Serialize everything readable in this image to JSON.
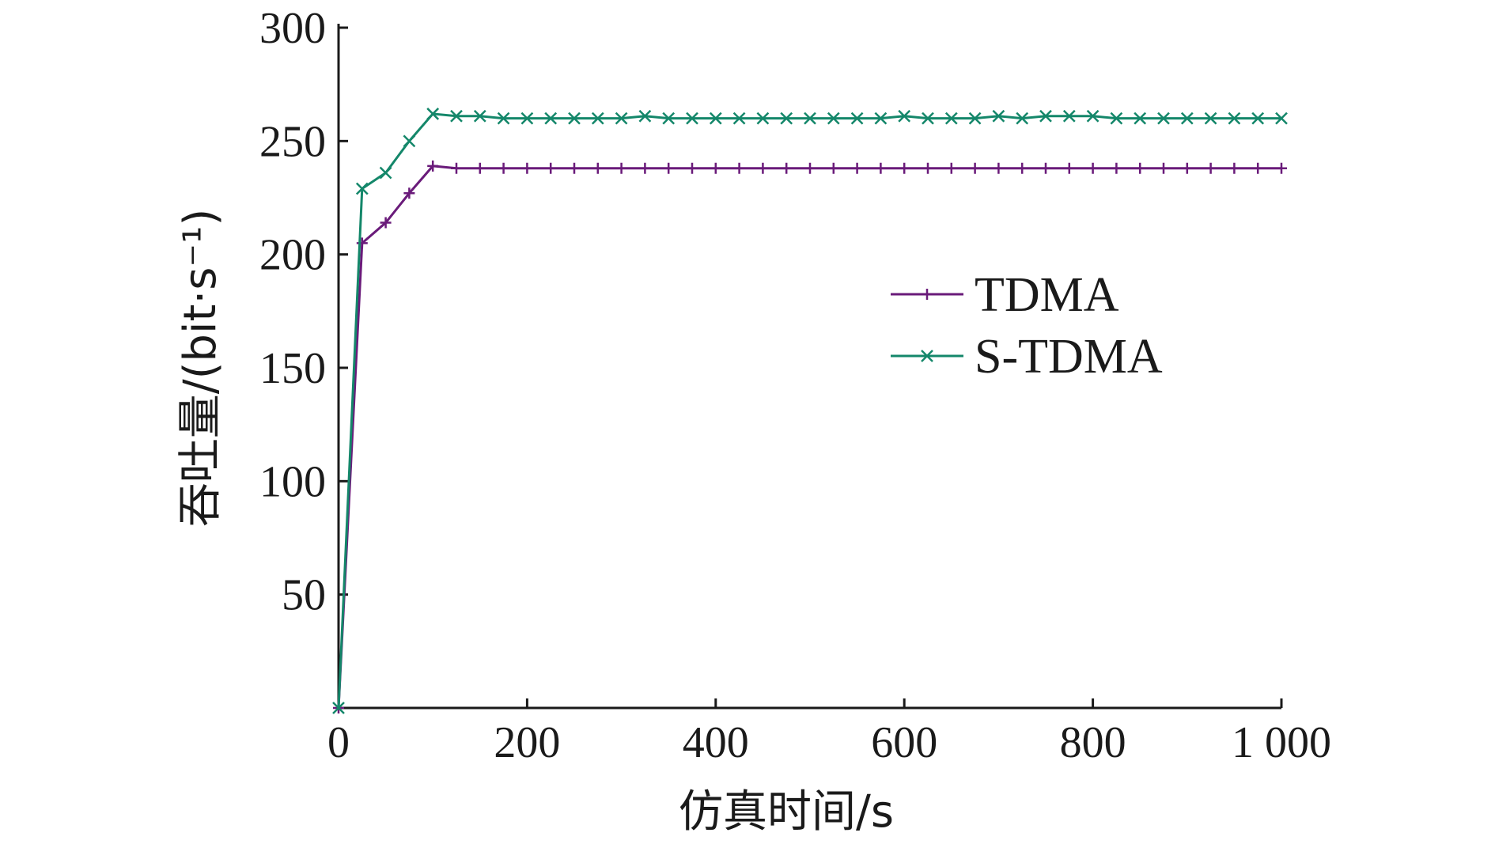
{
  "chart_data": {
    "type": "line",
    "title": "",
    "xlabel": "仿真时间/s",
    "ylabel": "吞吐量/(bit·s⁻¹)",
    "xlim": [
      0,
      1000
    ],
    "ylim": [
      0,
      300
    ],
    "x_ticks": [
      0,
      200,
      400,
      600,
      800,
      1000
    ],
    "x_tick_labels": [
      "0",
      "200",
      "400",
      "600",
      "800",
      "1 000"
    ],
    "y_ticks": [
      50,
      100,
      150,
      200,
      250,
      300
    ],
    "y_tick_labels": [
      "50",
      "100",
      "150",
      "200",
      "250",
      "300"
    ],
    "grid": false,
    "legend_position": "center-right",
    "x": [
      0,
      25,
      50,
      75,
      100,
      125,
      150,
      175,
      200,
      225,
      250,
      275,
      300,
      325,
      350,
      375,
      400,
      425,
      450,
      475,
      500,
      525,
      550,
      575,
      600,
      625,
      650,
      675,
      700,
      725,
      750,
      775,
      800,
      825,
      850,
      875,
      900,
      925,
      950,
      975,
      1000
    ],
    "series": [
      {
        "name": "TDMA",
        "color": "#6a1b7a",
        "marker": "plus",
        "values": [
          0,
          205,
          214,
          227,
          239,
          238,
          238,
          238,
          238,
          238,
          238,
          238,
          238,
          238,
          238,
          238,
          238,
          238,
          238,
          238,
          238,
          238,
          238,
          238,
          238,
          238,
          238,
          238,
          238,
          238,
          238,
          238,
          238,
          238,
          238,
          238,
          238,
          238,
          238,
          238,
          238
        ]
      },
      {
        "name": "S-TDMA",
        "color": "#14876a",
        "marker": "x",
        "values": [
          0,
          229,
          236,
          250,
          262,
          261,
          261,
          260,
          260,
          260,
          260,
          260,
          260,
          261,
          260,
          260,
          260,
          260,
          260,
          260,
          260,
          260,
          260,
          260,
          261,
          260,
          260,
          260,
          261,
          260,
          261,
          261,
          261,
          260,
          260,
          260,
          260,
          260,
          260,
          260,
          260
        ]
      }
    ]
  }
}
